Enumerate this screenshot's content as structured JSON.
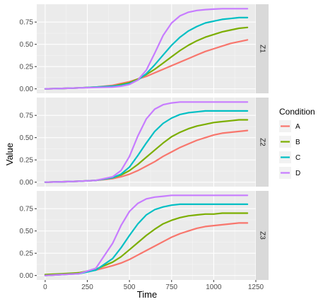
{
  "chart_data": {
    "type": "line",
    "xlabel": "Time",
    "ylabel": "Value",
    "xlim": [
      -50,
      1250
    ],
    "ylim": [
      -0.05,
      0.95
    ],
    "x_ticks": [
      0,
      250,
      500,
      750,
      1000,
      1250
    ],
    "y_ticks": [
      0.0,
      0.25,
      0.5,
      0.75
    ],
    "x_tick_labels": [
      "0",
      "250",
      "500",
      "750",
      "1000",
      "1250"
    ],
    "y_tick_labels": [
      "0.00",
      "0.25",
      "0.50",
      "0.75"
    ],
    "legend_title": "Condition",
    "legend_position": "right",
    "grid": true,
    "x": [
      0,
      100,
      200,
      300,
      400,
      450,
      500,
      550,
      600,
      650,
      700,
      750,
      800,
      850,
      900,
      950,
      1000,
      1050,
      1100,
      1150,
      1200
    ],
    "panels": [
      {
        "label": "Z1",
        "series": [
          {
            "name": "A",
            "color": "#F8766D",
            "values": [
              0.0,
              0.005,
              0.01,
              0.02,
              0.04,
              0.06,
              0.08,
              0.11,
              0.14,
              0.18,
              0.22,
              0.26,
              0.3,
              0.34,
              0.38,
              0.42,
              0.45,
              0.48,
              0.51,
              0.53,
              0.55
            ]
          },
          {
            "name": "B",
            "color": "#7CAE00",
            "values": [
              0.0,
              0.005,
              0.01,
              0.02,
              0.03,
              0.05,
              0.07,
              0.11,
              0.16,
              0.22,
              0.29,
              0.36,
              0.43,
              0.49,
              0.54,
              0.58,
              0.61,
              0.64,
              0.66,
              0.68,
              0.69
            ]
          },
          {
            "name": "C",
            "color": "#00BFC4",
            "values": [
              0.0,
              0.005,
              0.01,
              0.02,
              0.03,
              0.04,
              0.06,
              0.1,
              0.17,
              0.27,
              0.38,
              0.49,
              0.58,
              0.65,
              0.7,
              0.74,
              0.76,
              0.78,
              0.79,
              0.8,
              0.8
            ]
          },
          {
            "name": "D",
            "color": "#C77CFF",
            "values": [
              0.0,
              0.005,
              0.01,
              0.015,
              0.02,
              0.03,
              0.05,
              0.1,
              0.21,
              0.4,
              0.6,
              0.74,
              0.82,
              0.86,
              0.88,
              0.89,
              0.895,
              0.9,
              0.9,
              0.9,
              0.9
            ]
          }
        ]
      },
      {
        "label": "Z2",
        "series": [
          {
            "name": "A",
            "color": "#F8766D",
            "values": [
              0.0,
              0.005,
              0.01,
              0.02,
              0.04,
              0.06,
              0.09,
              0.13,
              0.18,
              0.23,
              0.29,
              0.34,
              0.39,
              0.43,
              0.47,
              0.5,
              0.53,
              0.55,
              0.56,
              0.57,
              0.58
            ]
          },
          {
            "name": "B",
            "color": "#7CAE00",
            "values": [
              0.0,
              0.005,
              0.01,
              0.02,
              0.05,
              0.08,
              0.13,
              0.2,
              0.28,
              0.36,
              0.44,
              0.51,
              0.56,
              0.6,
              0.63,
              0.65,
              0.67,
              0.68,
              0.69,
              0.7,
              0.7
            ]
          },
          {
            "name": "C",
            "color": "#00BFC4",
            "values": [
              0.0,
              0.005,
              0.01,
              0.02,
              0.05,
              0.09,
              0.17,
              0.3,
              0.44,
              0.57,
              0.66,
              0.72,
              0.76,
              0.78,
              0.79,
              0.8,
              0.8,
              0.8,
              0.8,
              0.8,
              0.8
            ]
          },
          {
            "name": "D",
            "color": "#C77CFF",
            "values": [
              0.0,
              0.005,
              0.01,
              0.02,
              0.06,
              0.13,
              0.29,
              0.52,
              0.71,
              0.82,
              0.87,
              0.89,
              0.9,
              0.9,
              0.9,
              0.9,
              0.9,
              0.9,
              0.9,
              0.9,
              0.9
            ]
          }
        ]
      },
      {
        "label": "Z3",
        "series": [
          {
            "name": "A",
            "color": "#F8766D",
            "values": [
              0.0,
              0.01,
              0.03,
              0.06,
              0.11,
              0.14,
              0.18,
              0.23,
              0.28,
              0.33,
              0.38,
              0.43,
              0.47,
              0.5,
              0.53,
              0.55,
              0.56,
              0.57,
              0.58,
              0.59,
              0.59
            ]
          },
          {
            "name": "B",
            "color": "#7CAE00",
            "values": [
              0.01,
              0.02,
              0.03,
              0.07,
              0.15,
              0.21,
              0.29,
              0.37,
              0.45,
              0.52,
              0.58,
              0.62,
              0.65,
              0.67,
              0.68,
              0.69,
              0.69,
              0.7,
              0.7,
              0.7,
              0.7
            ]
          },
          {
            "name": "C",
            "color": "#00BFC4",
            "values": [
              0.0,
              0.01,
              0.02,
              0.06,
              0.19,
              0.31,
              0.45,
              0.58,
              0.68,
              0.74,
              0.77,
              0.79,
              0.8,
              0.8,
              0.8,
              0.8,
              0.8,
              0.8,
              0.8,
              0.8,
              0.8
            ]
          },
          {
            "name": "D",
            "color": "#C77CFF",
            "values": [
              0.0,
              0.01,
              0.02,
              0.08,
              0.36,
              0.56,
              0.72,
              0.81,
              0.86,
              0.88,
              0.89,
              0.9,
              0.9,
              0.9,
              0.9,
              0.9,
              0.9,
              0.9,
              0.9,
              0.9,
              0.9
            ]
          }
        ]
      }
    ]
  }
}
